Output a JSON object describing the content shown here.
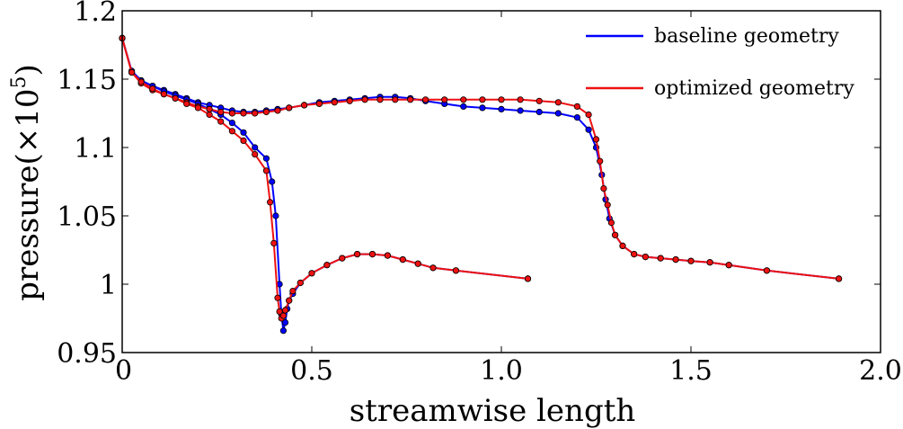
{
  "chart_data": {
    "type": "line",
    "title": "",
    "xlabel": "streamwise length",
    "ylabel": "pressure(×10",
    "ylabel_exponent": "5",
    "ylabel_suffix": ")",
    "xlim": [
      0,
      2.0
    ],
    "ylim": [
      0.95,
      1.2
    ],
    "x_ticks": [
      0,
      0.5,
      1.0,
      1.5,
      2.0
    ],
    "x_tick_labels": [
      "0",
      "0.5",
      "1.0",
      "1.5",
      "2.0"
    ],
    "y_ticks": [
      0.95,
      1.0,
      1.05,
      1.1,
      1.15,
      1.2
    ],
    "y_tick_labels": [
      "0.95",
      "1",
      "1.05",
      "1.1",
      "1.15",
      "1.2"
    ],
    "grid": false,
    "legend_position": "top-right",
    "series": [
      {
        "name": "baseline geometry",
        "color": "#0000ff",
        "marker": "circle",
        "curves": [
          [
            [
              0,
              1.18
            ],
            [
              0.025,
              1.156
            ],
            [
              0.05,
              1.149
            ],
            [
              0.08,
              1.145
            ],
            [
              0.11,
              1.142
            ],
            [
              0.14,
              1.139
            ],
            [
              0.17,
              1.136
            ],
            [
              0.2,
              1.133
            ],
            [
              0.23,
              1.131
            ],
            [
              0.26,
              1.129
            ],
            [
              0.29,
              1.127
            ],
            [
              0.32,
              1.126
            ],
            [
              0.35,
              1.126
            ],
            [
              0.38,
              1.127
            ],
            [
              0.41,
              1.128
            ],
            [
              0.44,
              1.129
            ],
            [
              0.48,
              1.131
            ],
            [
              0.52,
              1.133
            ],
            [
              0.56,
              1.134
            ],
            [
              0.6,
              1.135
            ],
            [
              0.64,
              1.136
            ],
            [
              0.68,
              1.137
            ],
            [
              0.72,
              1.137
            ],
            [
              0.76,
              1.136
            ],
            [
              0.8,
              1.134
            ],
            [
              0.85,
              1.132
            ],
            [
              0.9,
              1.13
            ],
            [
              0.95,
              1.129
            ],
            [
              1.0,
              1.128
            ],
            [
              1.05,
              1.127
            ],
            [
              1.1,
              1.126
            ],
            [
              1.15,
              1.125
            ],
            [
              1.2,
              1.122
            ],
            [
              1.23,
              1.113
            ],
            [
              1.25,
              1.1
            ],
            [
              1.265,
              1.08
            ],
            [
              1.275,
              1.062
            ],
            [
              1.285,
              1.048
            ],
            [
              1.3,
              1.036
            ],
            [
              1.32,
              1.028
            ],
            [
              1.35,
              1.022
            ],
            [
              1.38,
              1.02
            ],
            [
              1.42,
              1.019
            ],
            [
              1.46,
              1.018
            ],
            [
              1.5,
              1.017
            ],
            [
              1.55,
              1.016
            ],
            [
              1.6,
              1.014
            ],
            [
              1.7,
              1.01
            ],
            [
              1.89,
              1.004
            ]
          ],
          [
            [
              0,
              1.18
            ],
            [
              0.025,
              1.155
            ],
            [
              0.05,
              1.149
            ],
            [
              0.08,
              1.145
            ],
            [
              0.11,
              1.141
            ],
            [
              0.14,
              1.138
            ],
            [
              0.17,
              1.135
            ],
            [
              0.2,
              1.132
            ],
            [
              0.23,
              1.128
            ],
            [
              0.26,
              1.124
            ],
            [
              0.29,
              1.118
            ],
            [
              0.32,
              1.111
            ],
            [
              0.35,
              1.1
            ],
            [
              0.38,
              1.092
            ],
            [
              0.395,
              1.075
            ],
            [
              0.405,
              1.05
            ],
            [
              0.415,
              1.0
            ],
            [
              0.42,
              0.978
            ],
            [
              0.425,
              0.966
            ],
            [
              0.43,
              0.972
            ],
            [
              0.435,
              0.982
            ],
            [
              0.44,
              0.988
            ],
            [
              0.45,
              0.993
            ],
            [
              0.47,
              1.001
            ],
            [
              0.5,
              1.008
            ],
            [
              0.54,
              1.014
            ],
            [
              0.58,
              1.019
            ],
            [
              0.62,
              1.022
            ],
            [
              0.66,
              1.022
            ],
            [
              0.7,
              1.021
            ],
            [
              0.74,
              1.018
            ],
            [
              0.78,
              1.015
            ],
            [
              0.82,
              1.012
            ],
            [
              0.88,
              1.01
            ],
            [
              1.07,
              1.004
            ]
          ]
        ]
      },
      {
        "name": "optimized geometry",
        "color": "#ee1111",
        "marker": "circle",
        "curves": [
          [
            [
              0,
              1.18
            ],
            [
              0.025,
              1.155
            ],
            [
              0.05,
              1.147
            ],
            [
              0.08,
              1.142
            ],
            [
              0.11,
              1.139
            ],
            [
              0.14,
              1.136
            ],
            [
              0.17,
              1.133
            ],
            [
              0.2,
              1.13
            ],
            [
              0.23,
              1.128
            ],
            [
              0.26,
              1.126
            ],
            [
              0.29,
              1.125
            ],
            [
              0.32,
              1.125
            ],
            [
              0.35,
              1.125
            ],
            [
              0.38,
              1.126
            ],
            [
              0.41,
              1.127
            ],
            [
              0.44,
              1.129
            ],
            [
              0.48,
              1.131
            ],
            [
              0.52,
              1.132
            ],
            [
              0.56,
              1.133
            ],
            [
              0.6,
              1.134
            ],
            [
              0.64,
              1.135
            ],
            [
              0.68,
              1.135
            ],
            [
              0.72,
              1.135
            ],
            [
              0.76,
              1.135
            ],
            [
              0.8,
              1.135
            ],
            [
              0.85,
              1.135
            ],
            [
              0.9,
              1.135
            ],
            [
              0.95,
              1.135
            ],
            [
              1.0,
              1.135
            ],
            [
              1.05,
              1.135
            ],
            [
              1.1,
              1.134
            ],
            [
              1.15,
              1.133
            ],
            [
              1.2,
              1.13
            ],
            [
              1.23,
              1.124
            ],
            [
              1.25,
              1.106
            ],
            [
              1.26,
              1.09
            ],
            [
              1.27,
              1.07
            ],
            [
              1.28,
              1.058
            ],
            [
              1.29,
              1.045
            ],
            [
              1.3,
              1.036
            ],
            [
              1.32,
              1.028
            ],
            [
              1.35,
              1.022
            ],
            [
              1.38,
              1.02
            ],
            [
              1.42,
              1.019
            ],
            [
              1.46,
              1.018
            ],
            [
              1.5,
              1.017
            ],
            [
              1.55,
              1.016
            ],
            [
              1.6,
              1.014
            ],
            [
              1.7,
              1.01
            ],
            [
              1.89,
              1.004
            ]
          ],
          [
            [
              0,
              1.18
            ],
            [
              0.025,
              1.155
            ],
            [
              0.05,
              1.148
            ],
            [
              0.08,
              1.143
            ],
            [
              0.11,
              1.139
            ],
            [
              0.14,
              1.136
            ],
            [
              0.17,
              1.132
            ],
            [
              0.2,
              1.129
            ],
            [
              0.23,
              1.124
            ],
            [
              0.26,
              1.119
            ],
            [
              0.29,
              1.112
            ],
            [
              0.32,
              1.105
            ],
            [
              0.35,
              1.095
            ],
            [
              0.38,
              1.083
            ],
            [
              0.39,
              1.06
            ],
            [
              0.4,
              1.03
            ],
            [
              0.41,
              0.99
            ],
            [
              0.415,
              0.98
            ],
            [
              0.42,
              0.975
            ],
            [
              0.425,
              0.977
            ],
            [
              0.43,
              0.981
            ],
            [
              0.44,
              0.988
            ],
            [
              0.45,
              0.995
            ],
            [
              0.47,
              1.001
            ],
            [
              0.5,
              1.008
            ],
            [
              0.54,
              1.014
            ],
            [
              0.58,
              1.019
            ],
            [
              0.62,
              1.022
            ],
            [
              0.66,
              1.022
            ],
            [
              0.7,
              1.021
            ],
            [
              0.74,
              1.018
            ],
            [
              0.78,
              1.015
            ],
            [
              0.82,
              1.012
            ],
            [
              0.88,
              1.01
            ],
            [
              1.07,
              1.004
            ]
          ]
        ]
      }
    ]
  }
}
